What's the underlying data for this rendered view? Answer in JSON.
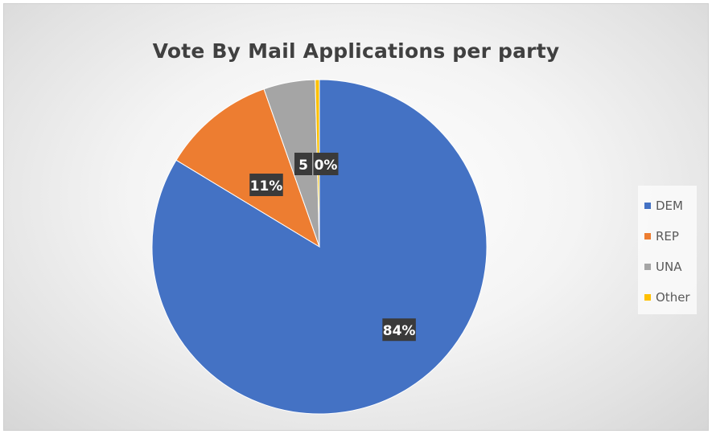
{
  "chart_data": {
    "type": "pie",
    "title": "Vote By Mail Applications per party",
    "categories": [
      "DEM",
      "REP",
      "UNA",
      "Other"
    ],
    "values": [
      84,
      11,
      5,
      0.4
    ],
    "data_labels": [
      "84%",
      "11%",
      "5",
      "0%"
    ],
    "colors": [
      "#4472C4",
      "#ED7D31",
      "#A5A5A5",
      "#FFC000"
    ],
    "legend_position": "right",
    "start_angle": "12 o'clock, clockwise"
  }
}
